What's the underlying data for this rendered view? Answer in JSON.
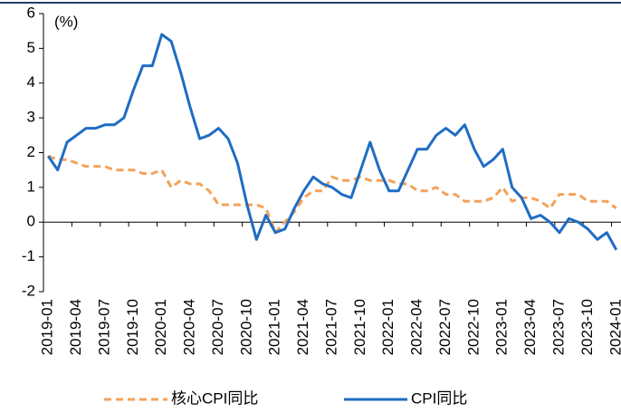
{
  "chart_data": {
    "type": "line",
    "y_unit_label": "(%)",
    "categories": [
      "2019-01",
      null,
      null,
      "2019-04",
      null,
      null,
      "2019-07",
      null,
      null,
      "2019-10",
      null,
      null,
      "2020-01",
      null,
      null,
      "2020-04",
      null,
      null,
      "2020-07",
      null,
      null,
      "2020-10",
      null,
      null,
      "2021-01",
      null,
      null,
      "2021-04",
      null,
      null,
      "2021-07",
      null,
      null,
      "2021-10",
      null,
      null,
      "2022-01",
      null,
      null,
      "2022-04",
      null,
      null,
      "2022-07",
      null,
      null,
      "2022-10",
      null,
      null,
      "2023-01",
      null,
      null,
      "2023-04",
      null,
      null,
      "2023-07",
      null,
      null,
      "2023-10",
      null,
      null,
      "2024-01"
    ],
    "series": [
      {
        "name": "核心CPI同比",
        "color": "#f4a25a",
        "dashed": true,
        "values": [
          1.9,
          1.8,
          1.8,
          1.7,
          1.6,
          1.6,
          1.6,
          1.5,
          1.5,
          1.5,
          1.4,
          1.4,
          1.5,
          1.0,
          1.2,
          1.1,
          1.1,
          0.9,
          0.5,
          0.5,
          0.5,
          0.5,
          0.5,
          0.4,
          -0.3,
          0.0,
          0.3,
          0.7,
          0.9,
          0.9,
          1.3,
          1.2,
          1.2,
          1.3,
          1.2,
          1.2,
          1.2,
          1.1,
          1.1,
          0.9,
          0.9,
          1.0,
          0.8,
          0.8,
          0.6,
          0.6,
          0.6,
          0.7,
          1.0,
          0.6,
          0.7,
          0.7,
          0.6,
          0.4,
          0.8,
          0.8,
          0.8,
          0.6,
          0.6,
          0.6,
          0.4
        ]
      },
      {
        "name": "CPI同比",
        "color": "#1f6cc4",
        "dashed": false,
        "values": [
          1.9,
          1.5,
          2.3,
          2.5,
          2.7,
          2.7,
          2.8,
          2.8,
          3.0,
          3.8,
          4.5,
          4.5,
          5.4,
          5.2,
          4.3,
          3.3,
          2.4,
          2.5,
          2.7,
          2.4,
          1.7,
          0.5,
          -0.5,
          0.2,
          -0.3,
          -0.2,
          0.4,
          0.9,
          1.3,
          1.1,
          1.0,
          0.8,
          0.7,
          1.5,
          2.3,
          1.5,
          0.9,
          0.9,
          1.5,
          2.1,
          2.1,
          2.5,
          2.7,
          2.5,
          2.8,
          2.1,
          1.6,
          1.8,
          2.1,
          1.0,
          0.7,
          0.1,
          0.2,
          0.0,
          -0.3,
          0.1,
          0.0,
          -0.2,
          -0.5,
          -0.3,
          -0.8
        ]
      }
    ],
    "ylim": [
      -2,
      6
    ],
    "yticks": [
      -2,
      -1,
      0,
      1,
      2,
      3,
      4,
      5,
      6
    ],
    "grid": false,
    "legend": "bottom"
  }
}
